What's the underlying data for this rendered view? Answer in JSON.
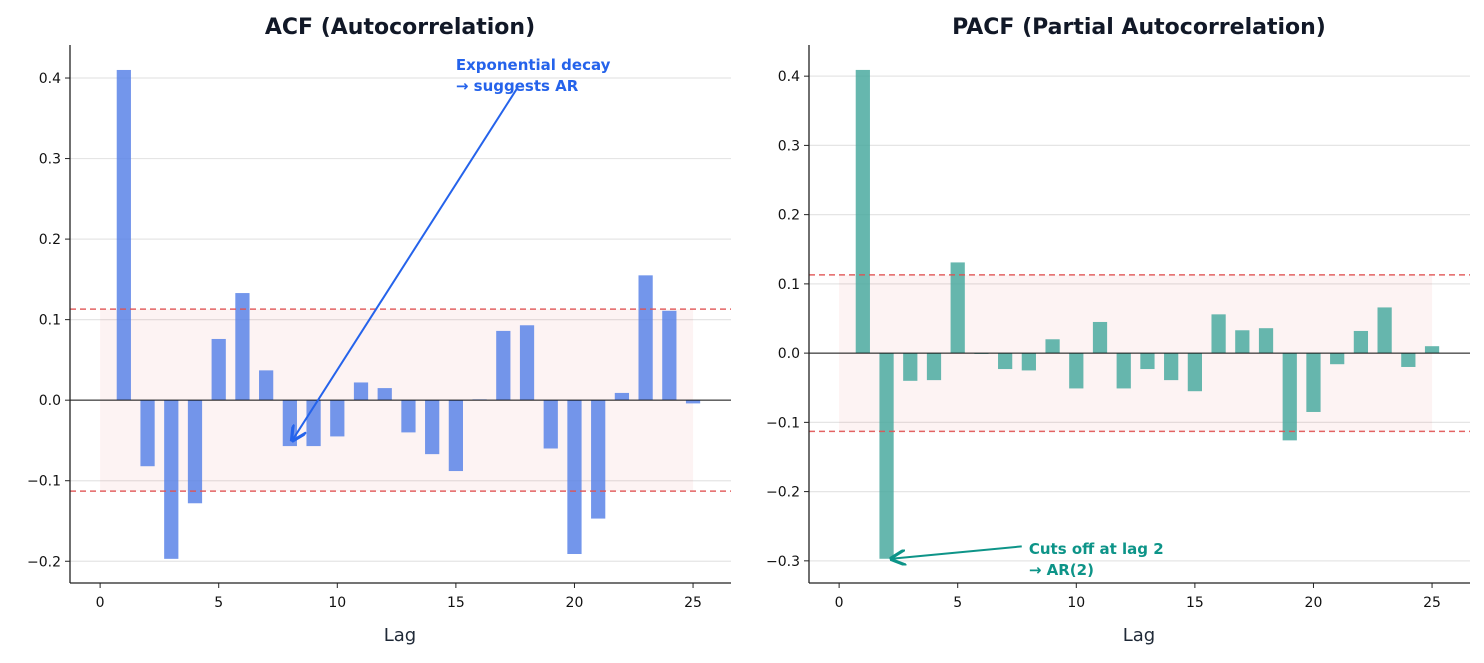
{
  "chart_data": [
    {
      "type": "bar",
      "title": "ACF (Autocorrelation)",
      "xlabel": "Lag",
      "ylabel": "",
      "x": [
        1,
        2,
        3,
        4,
        5,
        6,
        7,
        8,
        9,
        10,
        11,
        12,
        13,
        14,
        15,
        16,
        17,
        18,
        19,
        20,
        21,
        22,
        23,
        24,
        25
      ],
      "values": [
        0.41,
        -0.082,
        -0.197,
        -0.128,
        0.076,
        0.133,
        0.037,
        -0.057,
        -0.057,
        -0.045,
        0.022,
        0.015,
        -0.04,
        -0.067,
        -0.088,
        0.001,
        0.086,
        0.093,
        -0.06,
        -0.191,
        -0.147,
        0.009,
        0.155,
        0.111,
        -0.004
      ],
      "xlim": [
        -1.27,
        26.6
      ],
      "ylim": [
        -0.227,
        0.441
      ],
      "xticks": [
        0,
        5,
        10,
        15,
        20,
        25
      ],
      "yticks": [
        -0.2,
        -0.1,
        0.0,
        0.1,
        0.2,
        0.3,
        0.4
      ],
      "ytick_labels": [
        "−0.2",
        "−0.1",
        "0.0",
        "0.1",
        "0.2",
        "0.3",
        "0.4"
      ],
      "confidence_bound": 0.113,
      "grid": "horizontal",
      "bar_color": "#5b84e8",
      "band_color": "#e05252",
      "annotation": {
        "lines": [
          "Exponential decay",
          "→ suggests AR"
        ],
        "color": "#2563eb",
        "text_xy": [
          15.0,
          0.41
        ],
        "arrow_from": [
          17.6,
          0.388
        ],
        "arrow_to": [
          8.1,
          -0.05
        ]
      }
    },
    {
      "type": "bar",
      "title": "PACF (Partial Autocorrelation)",
      "xlabel": "Lag",
      "ylabel": "",
      "x": [
        1,
        2,
        3,
        4,
        5,
        6,
        7,
        8,
        9,
        10,
        11,
        12,
        13,
        14,
        15,
        16,
        17,
        18,
        19,
        20,
        21,
        22,
        23,
        24,
        25
      ],
      "values": [
        0.409,
        -0.297,
        -0.04,
        -0.039,
        0.131,
        0.0,
        -0.023,
        -0.025,
        0.02,
        -0.051,
        0.045,
        -0.051,
        -0.023,
        -0.039,
        -0.055,
        0.056,
        0.033,
        0.036,
        -0.126,
        -0.085,
        -0.016,
        0.032,
        0.066,
        -0.02,
        0.01
      ],
      "xlim": [
        -1.27,
        26.6
      ],
      "ylim": [
        -0.332,
        0.445
      ],
      "xticks": [
        0,
        5,
        10,
        15,
        20,
        25
      ],
      "yticks": [
        -0.3,
        -0.2,
        -0.1,
        0.0,
        0.1,
        0.2,
        0.3,
        0.4
      ],
      "ytick_labels": [
        "−0.3",
        "−0.2",
        "−0.1",
        "0.0",
        "0.1",
        "0.2",
        "0.3",
        "0.4"
      ],
      "confidence_bound": 0.113,
      "grid": "horizontal",
      "bar_color": "#4baaa0",
      "band_color": "#e05252",
      "annotation": {
        "lines": [
          "Cuts off at lag 2",
          "→ AR(2)"
        ],
        "color": "#0d9488",
        "text_xy": [
          8.0,
          -0.36
        ],
        "arrow_from": [
          7.7,
          -0.349
        ],
        "arrow_to": [
          2.2,
          -0.297
        ]
      }
    }
  ]
}
